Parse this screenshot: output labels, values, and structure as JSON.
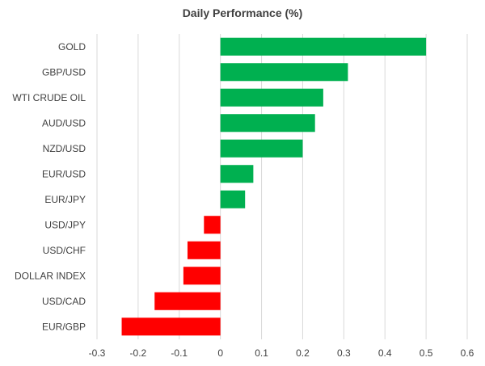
{
  "chart_data": {
    "type": "bar",
    "orientation": "horizontal",
    "title": "Daily Performance (%)",
    "xlabel": "",
    "ylabel": "",
    "categories": [
      "GOLD",
      "GBP/USD",
      "WTI CRUDE OIL",
      "AUD/USD",
      "NZD/USD",
      "EUR/USD",
      "EUR/JPY",
      "USD/JPY",
      "USD/CHF",
      "DOLLAR INDEX",
      "USD/CAD",
      "EUR/GBP"
    ],
    "values": [
      0.5,
      0.31,
      0.25,
      0.23,
      0.2,
      0.08,
      0.06,
      -0.04,
      -0.08,
      -0.09,
      -0.16,
      -0.24
    ],
    "xlim": [
      -0.3,
      0.6
    ],
    "xticks": [
      "-0.3",
      "-0.2",
      "-0.1",
      "0",
      "0.1",
      "0.2",
      "0.3",
      "0.4",
      "0.5",
      "0.6"
    ],
    "grid": "vertical",
    "legend": "none",
    "colors": {
      "positive": "#00b050",
      "negative": "#ff0000",
      "grid": "#d9d9d9",
      "text": "#404040"
    }
  }
}
